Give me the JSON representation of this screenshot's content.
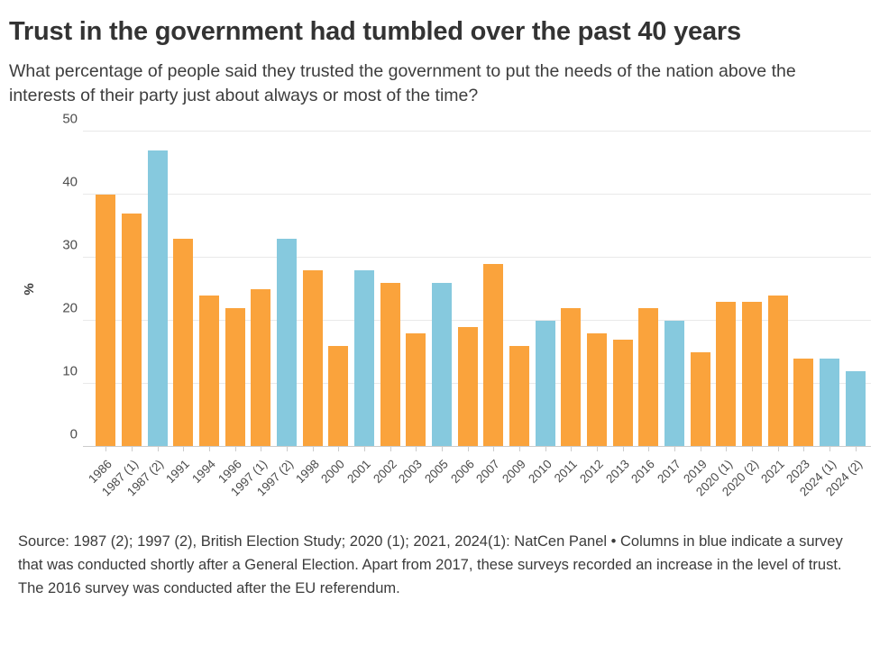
{
  "header": {
    "title": "Trust in the government had tumbled over the past 40 years",
    "subtitle": "What percentage of people said they trusted the government to put the needs of the nation above the interests of their party just about always or most of the time?"
  },
  "colors": {
    "orange": "#FAA33C",
    "blue": "#86C9DE"
  },
  "chart_data": {
    "type": "bar",
    "title": "Trust in the government had tumbled over the past 40 years",
    "xlabel": "",
    "ylabel": "%",
    "ylim": [
      0,
      50
    ],
    "yticks": [
      0,
      10,
      20,
      30,
      40,
      50
    ],
    "grid": true,
    "legend": "none",
    "categories": [
      "1986",
      "1987 (1)",
      "1987 (2)",
      "1991",
      "1994",
      "1996",
      "1997 (1)",
      "1997 (2)",
      "1998",
      "2000",
      "2001",
      "2002",
      "2003",
      "2005",
      "2006",
      "2007",
      "2009",
      "2010",
      "2011",
      "2012",
      "2013",
      "2016",
      "2017",
      "2019",
      "2020 (1)",
      "2020 (2)",
      "2021",
      "2023",
      "2024 (1)",
      "2024 (2)"
    ],
    "values": [
      40,
      37,
      47,
      33,
      24,
      22,
      25,
      33,
      28,
      16,
      28,
      26,
      18,
      26,
      19,
      29,
      16,
      20,
      22,
      18,
      17,
      22,
      20,
      15,
      23,
      23,
      24,
      14,
      14,
      12
    ],
    "bar_colors": [
      "orange",
      "orange",
      "blue",
      "orange",
      "orange",
      "orange",
      "orange",
      "blue",
      "orange",
      "orange",
      "blue",
      "orange",
      "orange",
      "blue",
      "orange",
      "orange",
      "orange",
      "blue",
      "orange",
      "orange",
      "orange",
      "orange",
      "blue",
      "orange",
      "orange",
      "orange",
      "orange",
      "orange",
      "blue",
      "blue"
    ]
  },
  "footer": {
    "source": "Source: 1987 (2); 1997 (2), British Election Study; 2020 (1); 2021, 2024(1): NatCen Panel • Columns in blue indicate a survey that was conducted shortly after a General Election. Apart from 2017, these surveys recorded an increase in the level of trust. The 2016 survey was conducted after the EU referendum."
  }
}
